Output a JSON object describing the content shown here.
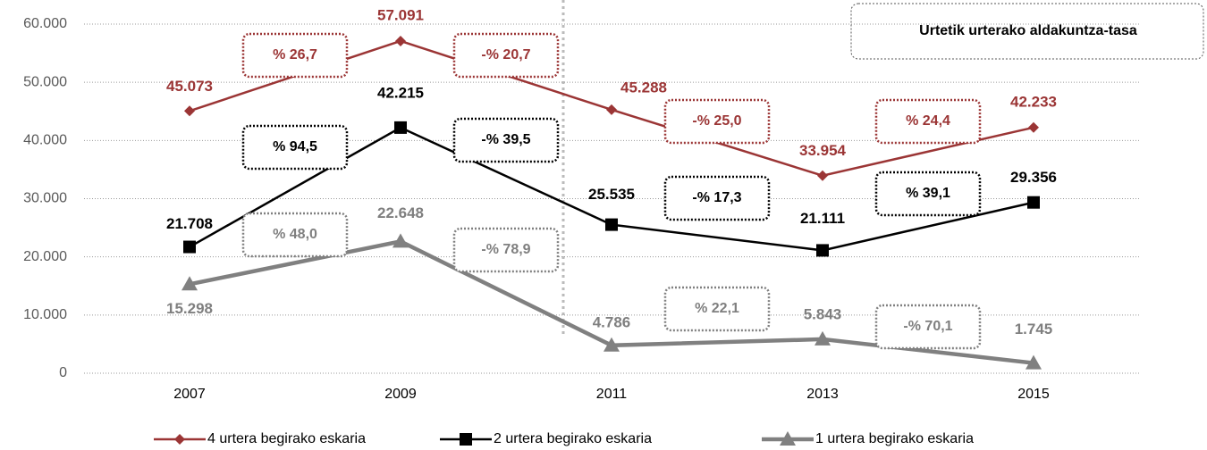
{
  "chart_data": {
    "type": "line",
    "annotation": "Urtetik urterako aldakuntza-tasa",
    "categories": [
      "2007",
      "2009",
      "2011",
      "2013",
      "2015"
    ],
    "series": [
      {
        "name": "4 urtera begirako eskaria",
        "color": "#9b3535",
        "marker": "diamond",
        "values": [
          45073,
          57091,
          45288,
          33954,
          42233
        ],
        "value_labels": [
          "45.073",
          "57.091",
          "45.288",
          "33.954",
          "42.233"
        ],
        "change_labels": [
          "% 26,7",
          "-% 20,7",
          "-% 25,0",
          "% 24,4"
        ]
      },
      {
        "name": "2 urtera begirako eskaria",
        "color": "#000000",
        "marker": "square",
        "values": [
          21708,
          42215,
          25535,
          21111,
          29356
        ],
        "value_labels": [
          "21.708",
          "42.215",
          "25.535",
          "21.111",
          "29.356"
        ],
        "change_labels": [
          "% 94,5",
          "-% 39,5",
          "-% 17,3",
          "% 39,1"
        ]
      },
      {
        "name": "1 urtera begirako eskaria",
        "color": "#808080",
        "marker": "triangle",
        "values": [
          15298,
          22648,
          4786,
          5843,
          1745
        ],
        "value_labels": [
          "15.298",
          "22.648",
          "4.786",
          "5.843",
          "1.745"
        ],
        "change_labels": [
          "% 48,0",
          "-% 78,9",
          "% 22,1",
          "-% 70,1"
        ]
      }
    ],
    "ylim": [
      0,
      60000
    ],
    "yticks": [
      0,
      {
        "value": 10000,
        "label": "10.000"
      },
      {
        "value": 20000,
        "label": "20.000"
      },
      {
        "value": 30000,
        "label": "30.000"
      },
      {
        "value": 40000,
        "label": "40.000"
      },
      {
        "value": 50000,
        "label": "50.000"
      },
      {
        "value": 60000,
        "label": "60.000"
      }
    ],
    "grid": true,
    "legend": "bottom"
  }
}
